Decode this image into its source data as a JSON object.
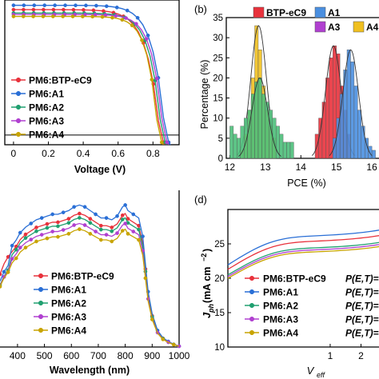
{
  "figure": {
    "panel_b_label": "(b)",
    "panel_d_label": "(d)"
  },
  "chart_data": [
    {
      "panel": "a",
      "type": "line",
      "xlabel": "Voltage (V)",
      "ylabel": "",
      "xlim": [
        -0.05,
        0.95
      ],
      "ylim": [
        -2,
        28
      ],
      "x_ticks": [
        "0",
        "0.2",
        "0.4",
        "0.6",
        "0.8"
      ],
      "x_tick_values": [
        0,
        0.2,
        0.4,
        0.6,
        0.8
      ],
      "series": [
        {
          "name": "PM6:BTP-eC9",
          "color": "#e8323c",
          "jsc": 26.0,
          "voc": 0.84,
          "ff": 0.78
        },
        {
          "name": "PM6:A1",
          "color": "#2a6fd6",
          "jsc": 26.9,
          "voc": 0.87,
          "ff": 0.79
        },
        {
          "name": "PM6:A2",
          "color": "#20a070",
          "jsc": 25.3,
          "voc": 0.85,
          "ff": 0.76
        },
        {
          "name": "PM6:A3",
          "color": "#b040d0",
          "jsc": 25.0,
          "voc": 0.86,
          "ff": 0.75
        },
        {
          "name": "PM6:A4",
          "color": "#c8a400",
          "jsc": 24.6,
          "voc": 0.83,
          "ff": 0.76
        }
      ]
    },
    {
      "panel": "b",
      "type": "bar",
      "xlabel": "PCE (%)",
      "ylabel": "Percentage (%)",
      "xlim": [
        11.9,
        16.2
      ],
      "ylim": [
        0,
        35
      ],
      "x_ticks": [
        "12",
        "13",
        "14",
        "15",
        "16"
      ],
      "x_tick_values": [
        12,
        13,
        14,
        15,
        16
      ],
      "y_ticks": [
        "0",
        "5",
        "10",
        "15",
        "20",
        "25",
        "30",
        "35"
      ],
      "y_tick_values": [
        0,
        5,
        10,
        15,
        20,
        25,
        30,
        35
      ],
      "legend": [
        "BTP-eC9",
        "A1",
        "A3",
        "A4"
      ],
      "series": [
        {
          "name": "A3",
          "color": "#f0c020",
          "bins": [
            12.35,
            12.45,
            12.55,
            12.65,
            12.75,
            12.85,
            12.95,
            13.05,
            13.15,
            13.25
          ],
          "values": [
            2,
            6,
            12,
            20,
            33,
            27,
            18,
            12,
            8,
            5
          ]
        },
        {
          "name": "A4",
          "color": "#4cbf7a",
          "bins": [
            12.05,
            12.15,
            12.25,
            12.35,
            12.45,
            12.55,
            12.65,
            12.75,
            12.85,
            12.95,
            13.05,
            13.15,
            13.25,
            13.35,
            13.45,
            13.55,
            13.65,
            13.75
          ],
          "values": [
            8,
            6,
            5,
            8,
            10,
            12,
            16,
            19,
            20,
            16,
            14,
            12,
            10,
            8,
            6,
            4,
            4,
            4
          ]
        },
        {
          "name": "BTP-eC9",
          "color": "#e8323c",
          "bins": [
            14.45,
            14.55,
            14.65,
            14.75,
            14.85,
            14.95,
            15.05,
            15.15,
            15.25,
            15.35
          ],
          "values": [
            6,
            10,
            14,
            20,
            25,
            28,
            26,
            18,
            12,
            6
          ]
        },
        {
          "name": "A1",
          "color": "#4a8fe0",
          "bins": [
            14.95,
            15.05,
            15.15,
            15.25,
            15.35,
            15.45,
            15.55,
            15.65,
            15.75,
            15.85,
            15.95,
            16.05
          ],
          "values": [
            5,
            10,
            16,
            22,
            27,
            24,
            18,
            12,
            8,
            5,
            3,
            2
          ]
        }
      ]
    },
    {
      "panel": "c",
      "type": "line",
      "xlabel": "Wavelength (nm)",
      "ylabel": "",
      "xlim": [
        300,
        1000
      ],
      "ylim": [
        0,
        85
      ],
      "x_ticks": [
        "400",
        "500",
        "600",
        "700",
        "800",
        "900",
        "1000"
      ],
      "x_tick_values": [
        400,
        500,
        600,
        700,
        800,
        900,
        1000
      ],
      "series": [
        {
          "name": "PM6:BTP-eC9",
          "color": "#e8323c",
          "scale": 0.94
        },
        {
          "name": "PM6:A1",
          "color": "#2a6fd6",
          "scale": 1.0
        },
        {
          "name": "PM6:A2",
          "color": "#20a070",
          "scale": 0.91
        },
        {
          "name": "PM6:A3",
          "color": "#b040d0",
          "scale": 0.87
        },
        {
          "name": "PM6:A4",
          "color": "#c8a400",
          "scale": 0.83
        }
      ]
    },
    {
      "panel": "d",
      "type": "line",
      "xlabel": "V_eff (V)",
      "ylabel": "J_ph (mA cm^-2)",
      "xlog": true,
      "xlim": [
        0.1,
        3.0
      ],
      "ylim": [
        10,
        30
      ],
      "x_ticks": [
        "1",
        "2"
      ],
      "x_tick_values": [
        1,
        2
      ],
      "y_ticks": [
        "10",
        "15",
        "20",
        "25"
      ],
      "y_tick_values": [
        10,
        15,
        20,
        25
      ],
      "ylabel_main": "J",
      "ylabel_sub": "ph",
      "ylabel_rest": " (mA cm",
      "ylabel_sup": "−2",
      "ylabel_close": ")",
      "xlabel_main": "V",
      "xlabel_sub": "eff",
      "legend_suffix": "P(E,T)=",
      "series": [
        {
          "name": "PM6:BTP-eC9",
          "color": "#e8323c",
          "jsat": 26.2
        },
        {
          "name": "PM6:A1",
          "color": "#2a6fd6",
          "jsat": 27.0
        },
        {
          "name": "PM6:A2",
          "color": "#20a070",
          "jsat": 25.2
        },
        {
          "name": "PM6:A3",
          "color": "#b040d0",
          "jsat": 24.9
        },
        {
          "name": "PM6:A4",
          "color": "#c8a400",
          "jsat": 24.6
        }
      ]
    }
  ]
}
